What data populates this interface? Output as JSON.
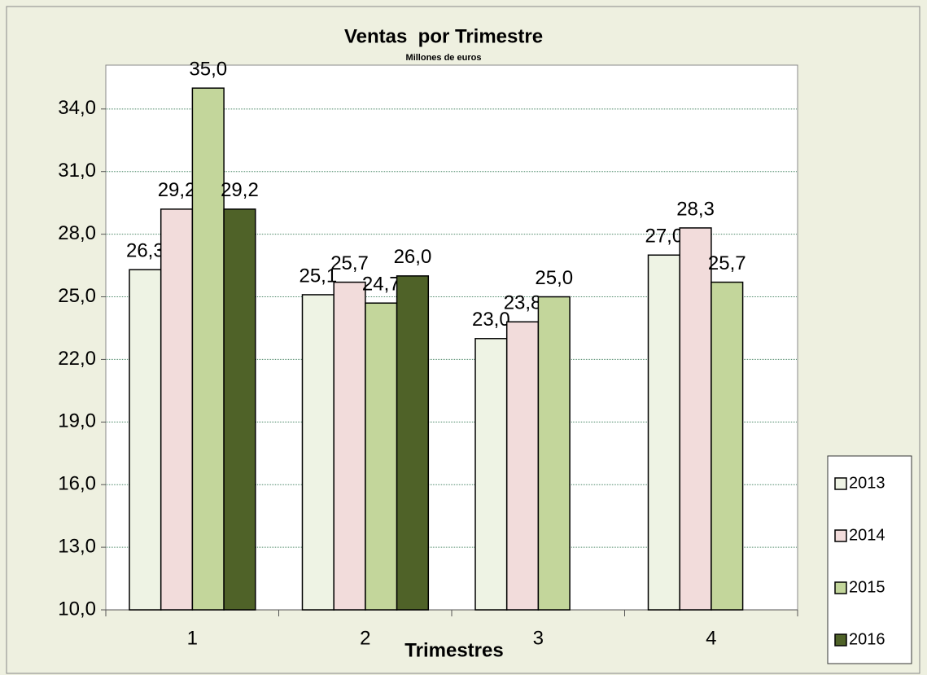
{
  "chart_data": {
    "type": "bar",
    "title": "Ventas  por Trimestre",
    "subtitle": "Millones de euros",
    "x_label": "Trimestres",
    "categories": [
      "1",
      "2",
      "3",
      "4"
    ],
    "series": [
      {
        "name": "2013",
        "color": "#eef3e4",
        "values": [
          26.3,
          25.1,
          23.0,
          27.0
        ],
        "value_labels": [
          "26,3",
          "25,1",
          "23,0",
          "27,0"
        ]
      },
      {
        "name": "2014",
        "color": "#f2dcdb",
        "values": [
          29.2,
          25.7,
          23.8,
          28.3
        ],
        "value_labels": [
          "29,2",
          "25,7",
          "23,8",
          "28,3"
        ]
      },
      {
        "name": "2015",
        "color": "#c3d69b",
        "values": [
          35.0,
          24.7,
          25.0,
          25.7
        ],
        "value_labels": [
          "35,0",
          "24,7",
          "25,0",
          "25,7"
        ]
      },
      {
        "name": "2016",
        "color": "#4f6228",
        "values": [
          29.2,
          26.0,
          null,
          null
        ],
        "value_labels": [
          "29,2",
          "26,0",
          null,
          null
        ]
      }
    ],
    "ylim": [
      10,
      36.1
    ],
    "yticks": [
      {
        "value": 10,
        "label": "10,0"
      },
      {
        "value": 13,
        "label": "13,0"
      },
      {
        "value": 16,
        "label": "16,0"
      },
      {
        "value": 19,
        "label": "19,0"
      },
      {
        "value": 22,
        "label": "22,0"
      },
      {
        "value": 25,
        "label": "25,0"
      },
      {
        "value": 28,
        "label": "28,0"
      },
      {
        "value": 31,
        "label": "31,0"
      },
      {
        "value": 34,
        "label": "34,0"
      }
    ],
    "grid": true,
    "legend": "right"
  }
}
